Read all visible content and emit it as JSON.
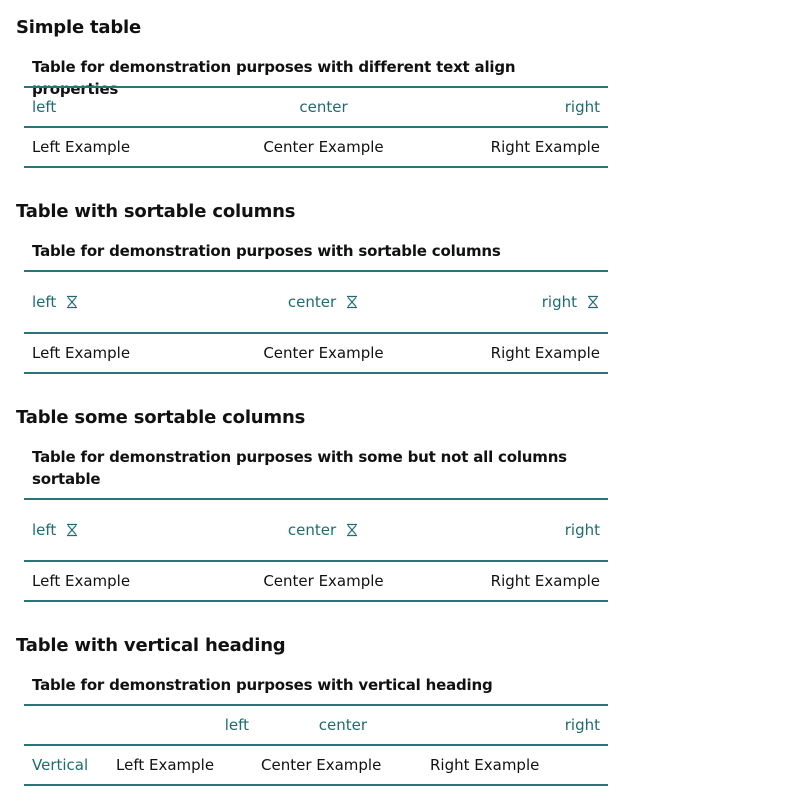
{
  "sections": [
    {
      "title": "Simple table",
      "caption": "Table for demonstration purposes with different text align properties",
      "headers": [
        "left",
        "center",
        "right"
      ],
      "row": [
        "Left Example",
        "Center Example",
        "Right Example"
      ]
    },
    {
      "title": "Table with sortable columns",
      "caption": "Table for demonstration purposes with sortable columns",
      "headers": [
        "left",
        "center",
        "right"
      ],
      "row": [
        "Left Example",
        "Center Example",
        "Right Example"
      ]
    },
    {
      "title": "Table some sortable columns",
      "caption": "Table for demonstration purposes with some but not all columns sortable",
      "headers": [
        "left",
        "center",
        "right"
      ],
      "row": [
        "Left Example",
        "Center Example",
        "Right Example"
      ]
    },
    {
      "title": "Table with vertical heading",
      "caption": "Table for demonstration purposes with vertical heading",
      "headers": [
        "left",
        "center",
        "right"
      ],
      "row_header": "Vertical",
      "row": [
        "Left Example",
        "Center Example",
        "Right Example"
      ]
    }
  ],
  "icons": {
    "sort": "sort-unsorted-icon"
  },
  "colors": {
    "accent": "#1f6b70",
    "border": "#2a7477",
    "text": "#111111",
    "background": "#ffffff"
  }
}
